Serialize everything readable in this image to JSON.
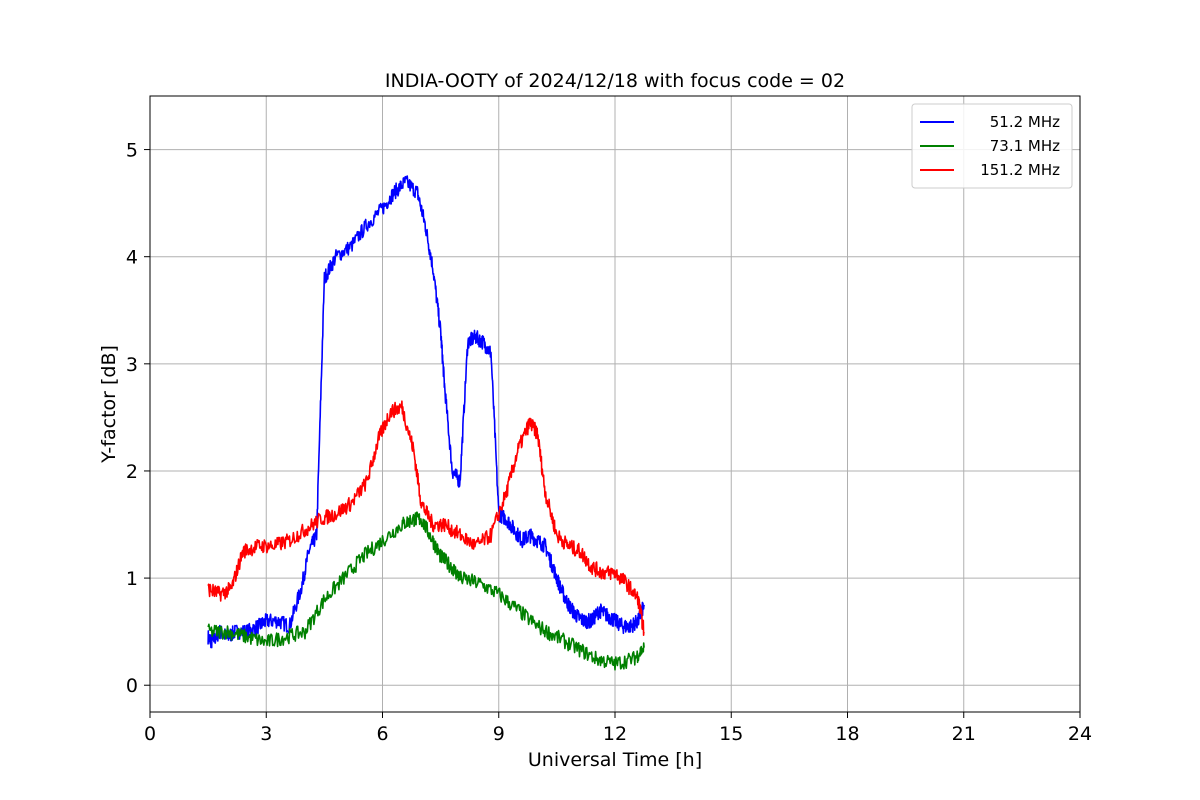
{
  "chart_data": {
    "type": "line",
    "title": "INDIA-OOTY of 2024/12/18 with focus code = 02",
    "xlabel": "Universal Time [h]",
    "ylabel": "Y-factor [dB]",
    "xlim": [
      0,
      24
    ],
    "ylim": [
      -0.25,
      5.5
    ],
    "xticks": [
      0,
      3,
      6,
      9,
      12,
      15,
      18,
      21,
      24
    ],
    "yticks": [
      0,
      1,
      2,
      3,
      4,
      5
    ],
    "grid": true,
    "legend_position": "top-right",
    "series": [
      {
        "name": "51.2 MHz",
        "color": "#0000ff",
        "x": [
          1.5,
          1.6,
          1.8,
          2.0,
          2.2,
          2.5,
          2.8,
          3.0,
          3.3,
          3.6,
          3.9,
          4.1,
          4.3,
          4.5,
          4.8,
          5.2,
          5.6,
          6.0,
          6.3,
          6.6,
          6.9,
          7.1,
          7.3,
          7.5,
          7.6,
          7.8,
          8.0,
          8.2,
          8.4,
          8.6,
          8.8,
          9.0,
          9.2,
          9.4,
          9.6,
          9.8,
          10.0,
          10.2,
          10.4,
          10.6,
          10.8,
          11.0,
          11.2,
          11.4,
          11.6,
          11.8,
          12.0,
          12.2,
          12.4,
          12.6,
          12.75
        ],
        "y": [
          0.45,
          0.4,
          0.5,
          0.45,
          0.5,
          0.5,
          0.55,
          0.6,
          0.6,
          0.55,
          0.9,
          1.25,
          1.4,
          3.8,
          4.0,
          4.1,
          4.3,
          4.45,
          4.6,
          4.7,
          4.6,
          4.3,
          3.9,
          3.3,
          2.8,
          2.0,
          1.9,
          3.2,
          3.25,
          3.2,
          3.1,
          1.6,
          1.55,
          1.45,
          1.35,
          1.4,
          1.35,
          1.3,
          1.1,
          0.9,
          0.75,
          0.65,
          0.6,
          0.6,
          0.7,
          0.65,
          0.6,
          0.55,
          0.55,
          0.6,
          0.75
        ]
      },
      {
        "name": "73.1 MHz",
        "color": "#008000",
        "x": [
          1.5,
          2.0,
          2.5,
          3.0,
          3.5,
          4.0,
          4.5,
          5.0,
          5.5,
          6.0,
          6.5,
          6.8,
          7.0,
          7.3,
          7.5,
          7.8,
          8.0,
          8.5,
          9.0,
          9.5,
          10.0,
          10.5,
          11.0,
          11.5,
          12.0,
          12.5,
          12.75
        ],
        "y": [
          0.5,
          0.5,
          0.45,
          0.4,
          0.45,
          0.5,
          0.8,
          1.0,
          1.2,
          1.35,
          1.5,
          1.55,
          1.55,
          1.35,
          1.2,
          1.1,
          1.0,
          0.95,
          0.85,
          0.7,
          0.55,
          0.45,
          0.35,
          0.25,
          0.2,
          0.25,
          0.35
        ]
      },
      {
        "name": "151.2 MHz",
        "color": "#ff0000",
        "x": [
          1.5,
          1.8,
          2.1,
          2.4,
          2.8,
          3.2,
          3.6,
          4.0,
          4.4,
          4.8,
          5.2,
          5.6,
          5.9,
          6.2,
          6.5,
          6.8,
          7.0,
          7.3,
          7.6,
          8.0,
          8.4,
          8.8,
          9.2,
          9.5,
          9.8,
          10.0,
          10.2,
          10.5,
          10.8,
          11.1,
          11.4,
          11.7,
          12.0,
          12.3,
          12.6,
          12.75
        ],
        "y": [
          0.9,
          0.85,
          0.9,
          1.25,
          1.3,
          1.3,
          1.35,
          1.45,
          1.55,
          1.6,
          1.7,
          1.9,
          2.3,
          2.55,
          2.6,
          2.2,
          1.7,
          1.5,
          1.5,
          1.4,
          1.3,
          1.4,
          1.8,
          2.2,
          2.45,
          2.35,
          1.8,
          1.4,
          1.3,
          1.25,
          1.1,
          1.05,
          1.05,
          0.95,
          0.8,
          0.5
        ]
      }
    ]
  }
}
